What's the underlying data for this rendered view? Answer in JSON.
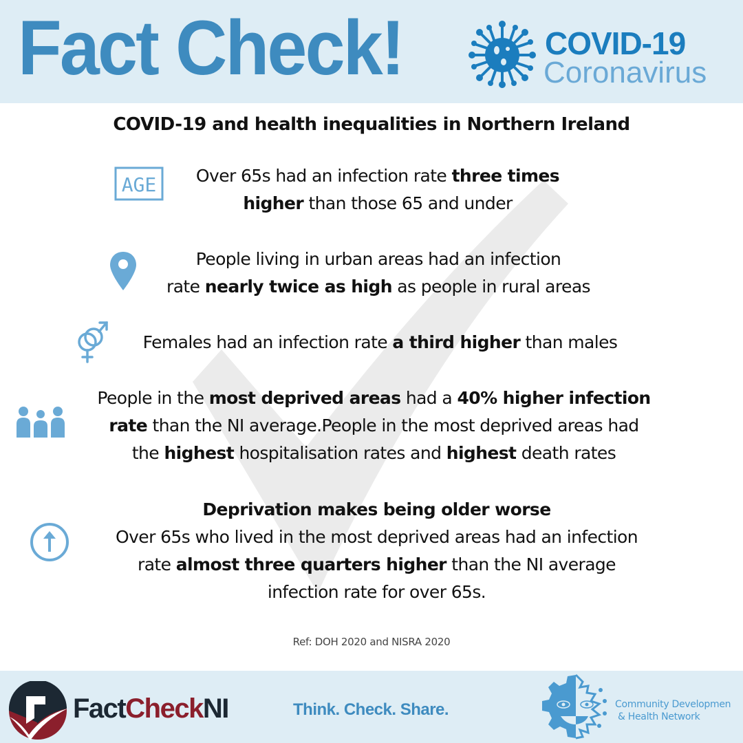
{
  "header": {
    "title": "Fact Check!",
    "badge_title": "COVID-19",
    "badge_subtitle": "Coronavirus",
    "virus_icon": "virus-icon"
  },
  "heading": "COVID-19 and health inequalities in Northern Ireland",
  "facts": [
    {
      "icon": "age-icon",
      "lines": [
        [
          {
            "t": "Over 65s had an infection rate ",
            "b": false
          },
          {
            "t": "three times",
            "b": true
          }
        ],
        [
          {
            "t": "higher",
            "b": true
          },
          {
            "t": " than those 65 and under",
            "b": false
          }
        ]
      ]
    },
    {
      "icon": "location-pin-icon",
      "lines": [
        [
          {
            "t": "People living in urban areas had an infection",
            "b": false
          }
        ],
        [
          {
            "t": "rate ",
            "b": false
          },
          {
            "t": "nearly twice as high",
            "b": true
          },
          {
            "t": " as people in rural areas",
            "b": false
          }
        ]
      ]
    },
    {
      "icon": "gender-icon",
      "lines": [
        [
          {
            "t": "Females had an infection rate ",
            "b": false
          },
          {
            "t": "a third higher",
            "b": true
          },
          {
            "t": " than males",
            "b": false
          }
        ]
      ]
    },
    {
      "icon": "people-group-icon",
      "lines": [
        [
          {
            "t": "People in the ",
            "b": false
          },
          {
            "t": "most deprived areas",
            "b": true
          },
          {
            "t": " had a ",
            "b": false
          },
          {
            "t": "40% higher infection",
            "b": true
          }
        ],
        [
          {
            "t": "rate",
            "b": true
          },
          {
            "t": " than the NI average.People in the most deprived areas had",
            "b": false
          }
        ],
        [
          {
            "t": "the ",
            "b": false
          },
          {
            "t": "highest",
            "b": true
          },
          {
            "t": " hospitalisation rates and ",
            "b": false
          },
          {
            "t": "highest",
            "b": true
          },
          {
            "t": " death rates",
            "b": false
          }
        ]
      ]
    },
    {
      "icon": "arrow-up-circle-icon",
      "lines": [
        [
          {
            "t": "Deprivation makes being older worse",
            "b": true
          }
        ],
        [
          {
            "t": "Over 65s who lived in the most deprived areas had an infection",
            "b": false
          }
        ],
        [
          {
            "t": "rate ",
            "b": false
          },
          {
            "t": "almost three quarters higher",
            "b": true
          },
          {
            "t": " than the NI average",
            "b": false
          }
        ],
        [
          {
            "t": "infection rate for over 65s.",
            "b": false
          }
        ]
      ]
    }
  ],
  "icon_labels": {
    "age": "AGE"
  },
  "reference": "Ref: DOH 2020 and NISRA 2020",
  "footer": {
    "brand_part1": "Fact",
    "brand_part2": "Check",
    "brand_part3": "NI",
    "tagline": "Think. Check. Share.",
    "partner_line1": "Community Developmen",
    "partner_line2": "& Health Network"
  },
  "colors": {
    "band_bg": "#deedf5",
    "primary_blue": "#3e8bbf",
    "covid_blue": "#1b7dbe",
    "icon_blue": "#6aaad6",
    "brand_dark": "#1c2833",
    "brand_red": "#8b1f2c",
    "watermark": "#ebebeb"
  }
}
